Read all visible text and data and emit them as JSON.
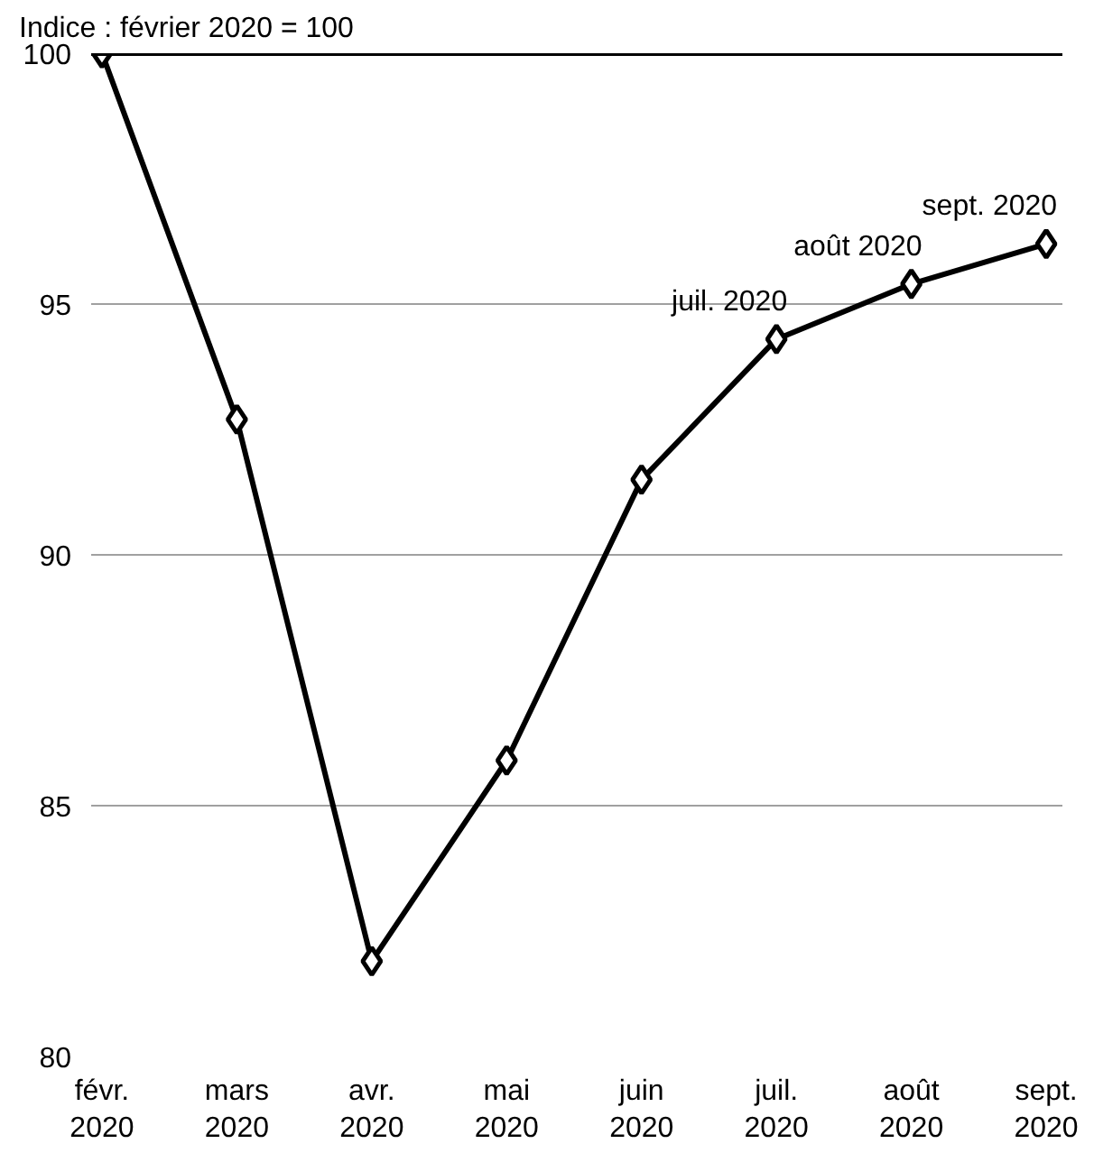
{
  "chart_data": {
    "type": "line",
    "ylabel": "Indice : février 2020 = 100",
    "categories": [
      "févr.\n2020",
      "mars\n2020",
      "avr.\n2020",
      "mai\n2020",
      "juin\n2020",
      "juil.\n2020",
      "août\n2020",
      "sept.\n2020"
    ],
    "series": [
      {
        "color": "#000000",
        "values": [
          100,
          92.7,
          81.9,
          85.9,
          91.5,
          94.3,
          95.4,
          96.2
        ]
      }
    ],
    "ylim": [
      80,
      100
    ],
    "yticks": [
      80,
      85,
      90,
      95,
      100
    ],
    "grid": "y",
    "marker": "diamond",
    "line_style": "solid",
    "ref_lines": [
      {
        "axis": "y",
        "value": 100,
        "color": "#000000"
      }
    ],
    "annotations": [
      {
        "text": "juil. 2020",
        "x": "juil.\n2020",
        "y": 94.3
      },
      {
        "text": "août 2020",
        "x": "août\n2020",
        "y": 95.4
      },
      {
        "text": "sept. 2020",
        "x": "sept.\n2020",
        "y": 96.2
      }
    ]
  }
}
